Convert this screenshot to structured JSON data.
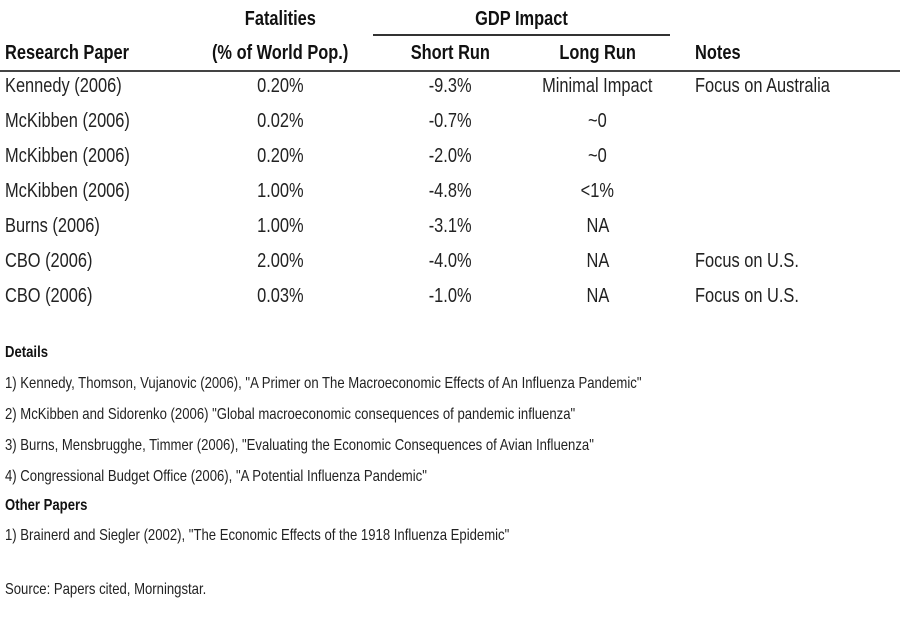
{
  "table": {
    "group_headers": {
      "fatalities": "Fatalities",
      "gdp_impact": "GDP Impact"
    },
    "columns": {
      "paper": "Research Paper",
      "fatalities": "(% of World Pop.)",
      "short_run": "Short Run",
      "long_run": "Long Run",
      "notes": "Notes"
    },
    "rows": [
      {
        "paper": "Kennedy (2006)",
        "fatalities": "0.20%",
        "short_run": "-9.3%",
        "long_run": "Minimal Impact",
        "notes": "Focus on Australia"
      },
      {
        "paper": "McKibben (2006)",
        "fatalities": "0.02%",
        "short_run": "-0.7%",
        "long_run": "~0",
        "notes": ""
      },
      {
        "paper": "McKibben (2006)",
        "fatalities": "0.20%",
        "short_run": "-2.0%",
        "long_run": "~0",
        "notes": ""
      },
      {
        "paper": "McKibben (2006)",
        "fatalities": "1.00%",
        "short_run": "-4.8%",
        "long_run": "<1%",
        "notes": ""
      },
      {
        "paper": "Burns (2006)",
        "fatalities": "1.00%",
        "short_run": "-3.1%",
        "long_run": "NA",
        "notes": ""
      },
      {
        "paper": "CBO (2006)",
        "fatalities": "2.00%",
        "short_run": "-4.0%",
        "long_run": "NA",
        "notes": "Focus on U.S."
      },
      {
        "paper": "CBO (2006)",
        "fatalities": "0.03%",
        "short_run": "-1.0%",
        "long_run": "NA",
        "notes": "Focus on U.S."
      }
    ]
  },
  "details": {
    "title": "Details",
    "items": [
      "1) Kennedy, Thomson, Vujanovic (2006), \"A Primer on The Macroeconomic Effects of An Influenza Pandemic\"",
      "2) McKibben and Sidorenko (2006) \"Global macroeconomic consequences of pandemic influenza\"",
      "3) Burns, Mensbrugghe, Timmer (2006), \"Evaluating the Economic Consequences of Avian Influenza\"",
      "4) Congressional Budget Office (2006), \"A Potential Influenza Pandemic\""
    ]
  },
  "other_papers": {
    "title": "Other Papers",
    "items": [
      "1) Brainerd and Siegler (2002), \"The Economic Effects of the 1918 Influenza Epidemic\""
    ]
  },
  "source": "Source: Papers cited, Morningstar."
}
